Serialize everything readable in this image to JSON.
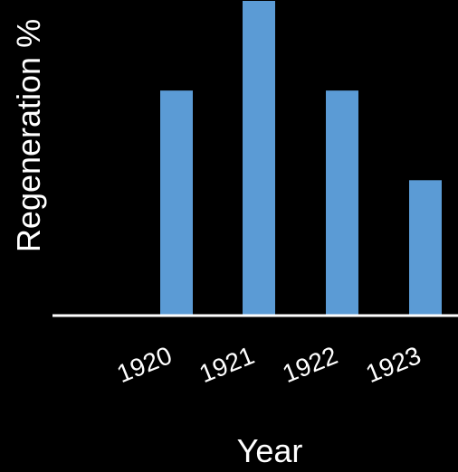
{
  "chart_data": {
    "type": "bar",
    "title": "",
    "xlabel": "Year",
    "ylabel": "Regeneration  %",
    "categories": [
      "1920",
      "1921",
      "1922",
      "1923"
    ],
    "values": [
      2.5,
      3.5,
      2.5,
      1.5
    ],
    "ylim": [
      0,
      3.5
    ],
    "grid": false,
    "legend": "none",
    "colors": {
      "background": "#000000",
      "bar": "#5b9bd5",
      "axis": "#ffffff",
      "text": "#ffffff"
    }
  }
}
